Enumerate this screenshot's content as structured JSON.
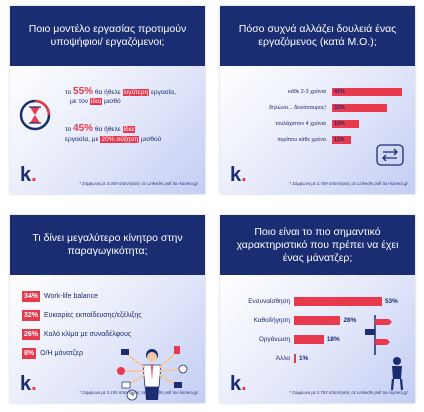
{
  "colors": {
    "navy": "#1a2c72",
    "accent": "#e8394f",
    "panel_bg": "#dfe5f9"
  },
  "brand": {
    "logo_letter": "k",
    "logo_dot": "."
  },
  "panel1": {
    "title": "Ποιο μοντέλο εργασίας προτιμούν υποψήφιοι/ εργαζόμενοι;",
    "line1_pre": "το ",
    "line1_pct": "55%",
    "line1_mid": " θα ήθελε ",
    "line1_hl": "λιγότερη",
    "line1_post": " εργασία,",
    "line2_pre": "με τον ",
    "line2_hl": "ίδιο",
    "line2_post": " μισθό",
    "line3_pre": "το ",
    "line3_pct": "45%",
    "line3_mid": " θα ήθελε ",
    "line3_hl": "ίδια",
    "line4_pre": "εργασία, με ",
    "line4_hl": "20% αύξηση",
    "line4_post": " μισθού",
    "footnote": "* Σύμφωνα με 4.009 απαντήσεις σε LinkedIn poll του kariera.gr.",
    "icon": "hourglass-icon"
  },
  "panel2": {
    "title": "Πόσο συχνά αλλάζει δουλειά ένας εργαζόμενος (κατά Μ.Ο.);",
    "footnote": "* Σύμφωνα με 3.769 απαντήσεις σε LinkedIn poll του kariera.gr.",
    "icon": "swap-arrows-icon",
    "chart_data": {
      "type": "bar",
      "orientation": "horizontal",
      "categories": [
        "κάθε 2-3 χρόνια",
        "δηλώνει... δεινόσαυρος!",
        "τουλάχιστον 4 χρόνια",
        "περίπου κάθε χρόνο"
      ],
      "values": [
        41,
        32,
        16,
        11
      ],
      "value_labels": [
        "41%",
        "32%",
        "16%",
        "11%"
      ]
    }
  },
  "panel3": {
    "title": "Τι δίνει μεγαλύτερο κίνητρο στην παραγωγικότητα;",
    "footnote": "* Σύμφωνα με 3.195 απαντήσεις σε LinkedIn poll του kariera.gr.",
    "illustration": "multitasking-person-illustration",
    "chart_data": {
      "type": "table",
      "categories": [
        "Work-life balance",
        "Ευκαιρίες εκπαίδευσης/εξέλιξης",
        "Καλό κλίμα με συναδέλφους",
        "Ο/Η μάνατζερ"
      ],
      "values": [
        34,
        32,
        26,
        8
      ],
      "value_labels": [
        "34%",
        "32%",
        "26%",
        "8%"
      ]
    }
  },
  "panel4": {
    "title": "Ποιο είναι το πιο σημαντικό χαρακτηριστικό που πρέπει να έχει ένας μάνατζερ;",
    "footnote": "* Σύμφωνα με 3.783 απαντήσεις σε LinkedIn poll του kariera.gr.",
    "illustration": "signpost-person-illustration",
    "chart_data": {
      "type": "bar",
      "orientation": "horizontal",
      "categories": [
        "Ενσυναίσθηση",
        "Καθοδήγηση",
        "Οργάνωση",
        "Άλλο"
      ],
      "values": [
        53,
        28,
        18,
        1
      ],
      "value_labels": [
        "53%",
        "28%",
        "18%",
        "1%"
      ]
    }
  }
}
